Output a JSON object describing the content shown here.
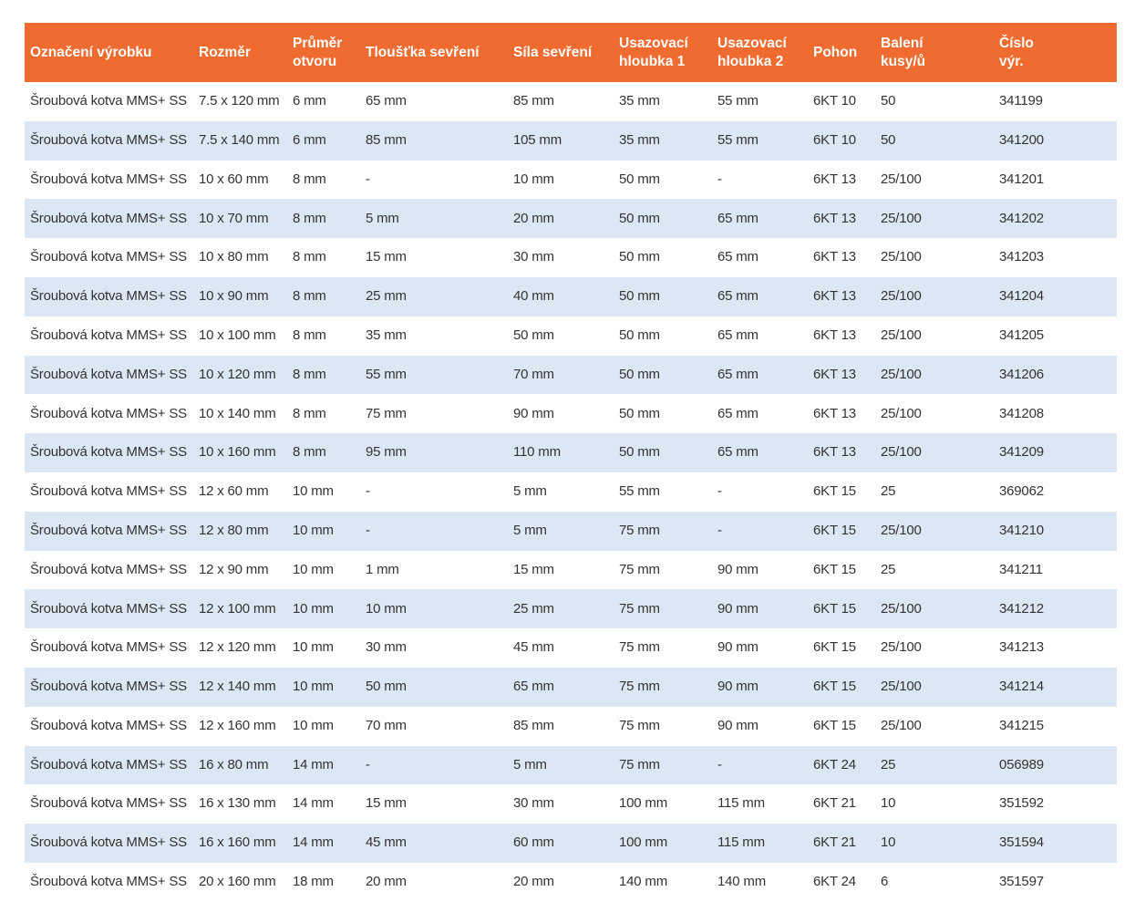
{
  "theme": {
    "header_bg": "#EF6B2F",
    "row_alt_bg": "#DBE8F3",
    "row_bg": "#FFFFFF",
    "text_color": "#333333",
    "header_text_color": "#FFFFFF"
  },
  "table": {
    "columns": [
      "Označení výrobku",
      "Rozměr",
      "Průměr\notvoru",
      "Tloušťka sevření",
      "Síla sevření",
      "Usazovací\nhloubka 1",
      "Usazovací\nhloubka 2",
      "Pohon",
      "Balení\nkusy/ů",
      "Číslo\nvýr."
    ],
    "rows": [
      [
        "Šroubová kotva MMS+ SS",
        "7.5 x 120 mm",
        "6 mm",
        "65 mm",
        "85 mm",
        "35 mm",
        "55 mm",
        "6KT 10",
        "50",
        "341199"
      ],
      [
        "Šroubová kotva MMS+ SS",
        "7.5 x 140 mm",
        "6 mm",
        "85 mm",
        "105 mm",
        "35 mm",
        "55 mm",
        "6KT 10",
        "50",
        "341200"
      ],
      [
        "Šroubová kotva MMS+ SS",
        "10 x 60 mm",
        "8 mm",
        "-",
        "10 mm",
        "50 mm",
        "-",
        "6KT 13",
        "25/100",
        "341201"
      ],
      [
        "Šroubová kotva MMS+ SS",
        "10 x 70 mm",
        "8 mm",
        "5 mm",
        "20 mm",
        "50 mm",
        "65 mm",
        "6KT 13",
        "25/100",
        "341202"
      ],
      [
        "Šroubová kotva MMS+ SS",
        "10 x 80 mm",
        "8 mm",
        "15 mm",
        "30 mm",
        "50 mm",
        "65 mm",
        "6KT 13",
        "25/100",
        "341203"
      ],
      [
        "Šroubová kotva MMS+ SS",
        "10 x 90 mm",
        "8 mm",
        "25 mm",
        "40 mm",
        "50 mm",
        "65 mm",
        "6KT 13",
        "25/100",
        "341204"
      ],
      [
        "Šroubová kotva MMS+ SS",
        "10 x 100 mm",
        "8 mm",
        "35 mm",
        "50 mm",
        "50 mm",
        "65 mm",
        "6KT 13",
        "25/100",
        "341205"
      ],
      [
        "Šroubová kotva MMS+ SS",
        "10 x 120 mm",
        "8 mm",
        "55 mm",
        "70 mm",
        "50 mm",
        "65 mm",
        "6KT 13",
        "25/100",
        "341206"
      ],
      [
        "Šroubová kotva MMS+ SS",
        "10 x 140 mm",
        "8 mm",
        "75 mm",
        "90 mm",
        "50 mm",
        "65 mm",
        "6KT 13",
        "25/100",
        "341208"
      ],
      [
        "Šroubová kotva MMS+ SS",
        "10 x 160 mm",
        "8 mm",
        "95 mm",
        "110 mm",
        "50 mm",
        "65 mm",
        "6KT 13",
        "25/100",
        "341209"
      ],
      [
        "Šroubová kotva MMS+ SS",
        "12 x 60 mm",
        "10 mm",
        "-",
        "5 mm",
        "55 mm",
        "-",
        "6KT 15",
        "25",
        "369062"
      ],
      [
        "Šroubová kotva MMS+ SS",
        "12 x 80 mm",
        "10 mm",
        "-",
        "5 mm",
        "75 mm",
        "-",
        "6KT 15",
        "25/100",
        "341210"
      ],
      [
        "Šroubová kotva MMS+ SS",
        "12 x 90 mm",
        "10 mm",
        "1 mm",
        "15 mm",
        "75 mm",
        "90 mm",
        "6KT 15",
        "25",
        "341211"
      ],
      [
        "Šroubová kotva MMS+ SS",
        "12 x 100 mm",
        "10 mm",
        "10 mm",
        "25 mm",
        "75 mm",
        "90 mm",
        "6KT 15",
        "25/100",
        "341212"
      ],
      [
        "Šroubová kotva MMS+ SS",
        "12 x 120 mm",
        "10 mm",
        "30 mm",
        "45 mm",
        "75 mm",
        "90 mm",
        "6KT 15",
        "25/100",
        "341213"
      ],
      [
        "Šroubová kotva MMS+ SS",
        "12 x 140 mm",
        "10 mm",
        "50 mm",
        "65 mm",
        "75 mm",
        "90 mm",
        "6KT 15",
        "25/100",
        "341214"
      ],
      [
        "Šroubová kotva MMS+ SS",
        "12 x 160 mm",
        "10 mm",
        "70 mm",
        "85 mm",
        "75 mm",
        "90 mm",
        "6KT 15",
        "25/100",
        "341215"
      ],
      [
        "Šroubová kotva MMS+ SS",
        "16 x 80 mm",
        "14 mm",
        "-",
        "5 mm",
        "75 mm",
        "-",
        "6KT 24",
        "25",
        "056989"
      ],
      [
        "Šroubová kotva MMS+ SS",
        "16 x 130 mm",
        "14 mm",
        "15 mm",
        "30 mm",
        "100 mm",
        "115 mm",
        "6KT 21",
        "10",
        "351592"
      ],
      [
        "Šroubová kotva MMS+ SS",
        "16 x 160 mm",
        "14 mm",
        "45 mm",
        "60 mm",
        "100 mm",
        "115 mm",
        "6KT 21",
        "10",
        "351594"
      ],
      [
        "Šroubová kotva MMS+ SS",
        "20 x 160 mm",
        "18 mm",
        "20 mm",
        "20 mm",
        "140 mm",
        "140 mm",
        "6KT 24",
        "6",
        "351597"
      ]
    ]
  }
}
